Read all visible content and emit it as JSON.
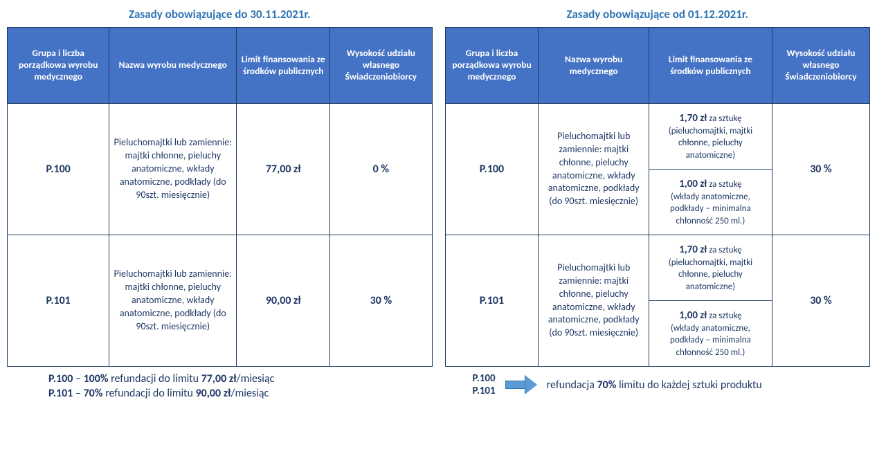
{
  "left": {
    "title": "Zasady obowiązujące do 30.11.2021r.",
    "headers": {
      "c1": "Grupa i liczba porządkowa wyrobu medycznego",
      "c2": "Nazwa wyrobu medycznego",
      "c3": "Limit finansowania ze środków publicznych",
      "c4": "Wysokość udziału własnego Świadczeniobiorcy"
    },
    "rows": [
      {
        "code": "P.100",
        "desc": "Pieluchomajtki lub zamiennie: majtki chłonne, pieluchy anatomiczne, wkłady anatomiczne, podkłady (do 90szt. miesięcznie)",
        "limit": "77,00 zł",
        "share": "0 %"
      },
      {
        "code": "P.101",
        "desc": "Pieluchomajtki lub zamiennie: majtki chłonne, pieluchy anatomiczne, wkłady anatomiczne, podkłady (do 90szt. miesięcznie)",
        "limit": "90,00 zł",
        "share": "30 %"
      }
    ],
    "footer": {
      "l1_code": "P.100",
      "l1_pct": "100%",
      "l1_mid": " refundacji do limitu ",
      "l1_val": "77,00 zł",
      "l1_tail": "/miesiąc",
      "l2_code": "P.101",
      "l2_pct": "70%",
      "l2_mid": " refundacji do limitu ",
      "l2_val": "90,00 zł",
      "l2_tail": "/miesiąc"
    }
  },
  "right": {
    "title": "Zasady obowiązujące od 01.12.2021r.",
    "headers": {
      "c1": "Grupa i liczba porządkowa wyrobu medycznego",
      "c2": "Nazwa wyrobu medycznego",
      "c3": "Limit finansowania ze środków publicznych",
      "c4": "Wysokość udziału własnego Świadczeniobiorcy"
    },
    "rows": [
      {
        "code": "P.100",
        "desc": "Pieluchomajtki lub zamiennie: majtki chłonne, pieluchy anatomiczne, wkłady anatomiczne, podkłady (do 90szt. miesięcznie)",
        "l1_price": "1,70 zł",
        "l1_unit": " za sztukę",
        "l1_note": "(pieluchomajtki, majtki chłonne, pieluchy anatomiczne)",
        "l2_price": "1,00 zł",
        "l2_unit": " za sztukę",
        "l2_note": "(wkłady anatomiczne, podkłady – minimalna chłonność 250 ml.)",
        "share": "30 %"
      },
      {
        "code": "P.101",
        "desc": "Pieluchomajtki lub zamiennie: majtki chłonne, pieluchy anatomiczne, wkłady anatomiczne, podkłady (do 90szt. miesięcznie)",
        "l1_price": "1,70 zł",
        "l1_unit": " za sztukę",
        "l1_note": "(pieluchomajtki, majtki chłonne, pieluchy anatomiczne)",
        "l2_price": "1,00 zł",
        "l2_unit": " za sztukę",
        "l2_note": "(wkłady anatomiczne, podkłady – minimalna chłonność 250 ml.)",
        "share": "30 %"
      }
    ],
    "footer": {
      "code1": "P.100",
      "code2": "P.101",
      "text_pre": "refundacja ",
      "pct": "70%",
      "text_post": " limitu do każdej sztuki produktu"
    }
  }
}
